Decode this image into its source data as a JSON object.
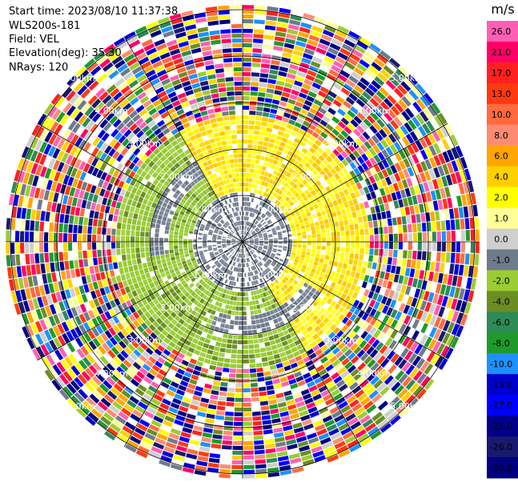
{
  "header": {
    "start_time": "Start time: 2023/08/10 11:37:38",
    "instrument": "WLS200s-181",
    "field": "Field: VEL",
    "elevation": "Elevation(deg): 35.30",
    "nrays": "NRays: 120"
  },
  "chart_data": {
    "type": "heatmap",
    "projection": "polar-ppi",
    "range_rings_km": [
      1,
      2,
      3,
      4,
      5
    ],
    "ring_labels": [
      "1.00km",
      "2.00km",
      "3.00km",
      "4.00km",
      "5.00km"
    ],
    "spoke_azimuths_deg": [
      0,
      30,
      60,
      90,
      120,
      150,
      180,
      210,
      240,
      270,
      300,
      330
    ],
    "n_rays": 120,
    "max_range_km": 5.1,
    "colorbar": {
      "unit": "m/s",
      "ticks": [
        "26.0",
        "21.0",
        "17.0",
        "13.0",
        "10.0",
        "8.0",
        "6.0",
        "4.0",
        "2.0",
        "1.0",
        "0.0",
        "-1.0",
        "-2.0",
        "-4.0",
        "-6.0",
        "-8.0",
        "-10.0",
        "-13.0",
        "-17.0",
        "-21.0",
        "-26.0",
        "-30.0"
      ],
      "colors": [
        "#ff5fb4",
        "#ff0066",
        "#ff2020",
        "#ff3a10",
        "#ff6a40",
        "#ff8c72",
        "#ffa500",
        "#ffd000",
        "#ffff00",
        "#ffff99",
        "#cfcfcf",
        "#6e7b8b",
        "#9acd32",
        "#6b8e23",
        "#2e8b57",
        "#1f9a2a",
        "#1e90ff",
        "#0000cd",
        "#0000ff",
        "#00008b",
        "#191970",
        "#000080"
      ]
    },
    "regions": [
      {
        "name": "near",
        "range_km": [
          0,
          1.0
        ],
        "value_ms": 0.0
      },
      {
        "name": "approaching",
        "range_km": [
          1.0,
          2.7
        ],
        "azimuth_deg": [
          150,
          330
        ],
        "value_ms": -2.0
      },
      {
        "name": "receding",
        "range_km": [
          1.0,
          2.7
        ],
        "azimuth_deg": [
          330,
          150
        ],
        "value_ms": 2.0
      },
      {
        "name": "noise",
        "range_km": [
          2.7,
          5.1
        ],
        "value_ms": "noise"
      }
    ]
  }
}
